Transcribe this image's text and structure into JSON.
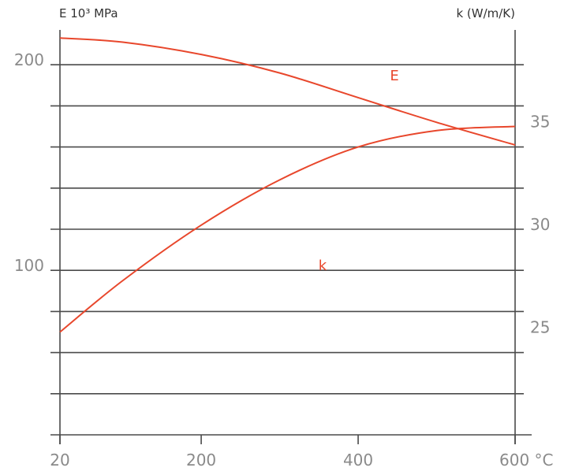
{
  "chart_data": {
    "type": "line",
    "left_axis_title": "E 10³ MPa",
    "right_axis_title": "k (W/m/K)",
    "x_ticks": [
      {
        "value": 20,
        "label": "20"
      },
      {
        "value": 200,
        "label": "200"
      },
      {
        "value": 400,
        "label": "400"
      },
      {
        "value": 600,
        "label": "600 °C"
      }
    ],
    "left_ticks": [
      {
        "value": 100,
        "label": "100"
      },
      {
        "value": 200,
        "label": "200"
      }
    ],
    "right_ticks": [
      {
        "value": 25,
        "label": "25"
      },
      {
        "value": 30,
        "label": "30"
      },
      {
        "value": 35,
        "label": "35"
      }
    ],
    "xlim": [
      20,
      600
    ],
    "ylim_left": [
      20,
      220
    ],
    "ylim_right": [
      20,
      40
    ],
    "grid": true,
    "series": [
      {
        "name": "E",
        "axis": "left",
        "color": "#e8472c",
        "x": [
          20,
          100,
          200,
          300,
          400,
          500,
          600
        ],
        "y": [
          213,
          211,
          205,
          196,
          184,
          172,
          161
        ]
      },
      {
        "name": "k",
        "axis": "right",
        "color": "#e8472c",
        "x": [
          20,
          100,
          200,
          300,
          400,
          500,
          600
        ],
        "y": [
          25,
          27.5,
          30.2,
          32.4,
          34.0,
          34.8,
          35
        ]
      }
    ]
  }
}
